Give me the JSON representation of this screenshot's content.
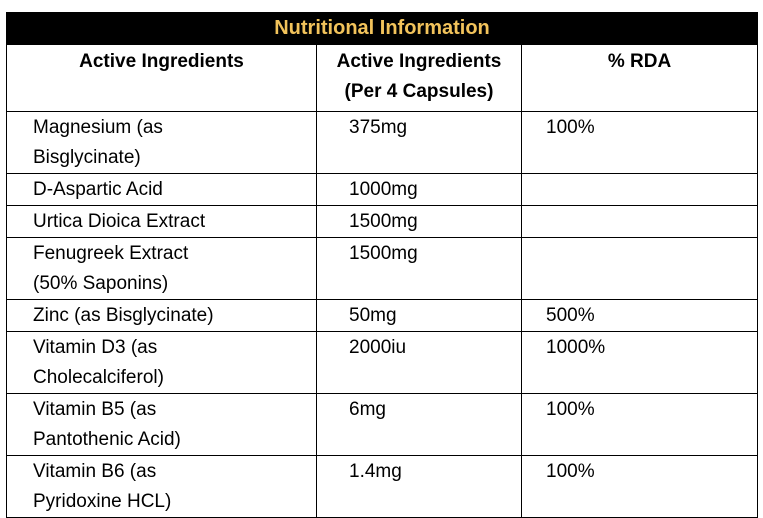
{
  "table": {
    "title": "Nutritional Information",
    "headers": [
      {
        "line1": "Active Ingredients",
        "line2": ""
      },
      {
        "line1": "Active Ingredients",
        "line2": "(Per 4 Capsules)"
      },
      {
        "line1": "% RDA",
        "line2": ""
      }
    ],
    "rows": [
      {
        "ingredient_l1": "Magnesium (as",
        "ingredient_l2": "Bisglycinate)",
        "amount": "375mg",
        "rda": "100%"
      },
      {
        "ingredient_l1": "D-Aspartic Acid",
        "ingredient_l2": "",
        "amount": "1000mg",
        "rda": ""
      },
      {
        "ingredient_l1": "Urtica Dioica Extract",
        "ingredient_l2": "",
        "amount": "1500mg",
        "rda": ""
      },
      {
        "ingredient_l1": "Fenugreek Extract",
        "ingredient_l2": "(50% Saponins)",
        "amount": "1500mg",
        "rda": ""
      },
      {
        "ingredient_l1": "Zinc (as Bisglycinate)",
        "ingredient_l2": "",
        "amount": "50mg",
        "rda": "500%"
      },
      {
        "ingredient_l1": "Vitamin D3 (as",
        "ingredient_l2": "Cholecalciferol)",
        "amount": "2000iu",
        "rda": "1000%"
      },
      {
        "ingredient_l1": "Vitamin B5 (as",
        "ingredient_l2": "Pantothenic Acid)",
        "amount": "6mg",
        "rda": "100%"
      },
      {
        "ingredient_l1": "Vitamin B6 (as",
        "ingredient_l2": "Pyridoxine HCL)",
        "amount": "1.4mg",
        "rda": "100%"
      }
    ]
  }
}
